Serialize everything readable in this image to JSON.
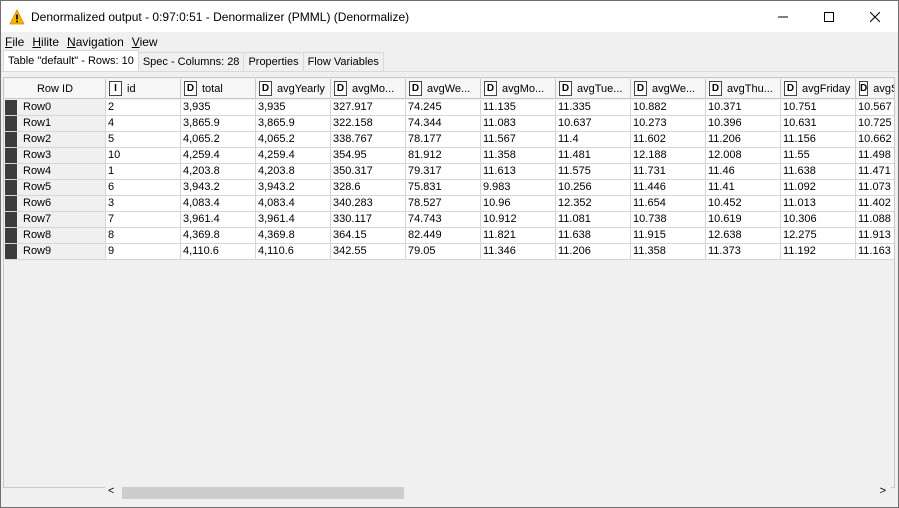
{
  "window": {
    "title": "Denormalized output - 0:97:0:51 - Denormalizer (PMML) (Denormalize)"
  },
  "menu": [
    {
      "label": "File",
      "u": "F",
      "rest": "ile"
    },
    {
      "label": "Hilite",
      "u": "H",
      "rest": "ilite"
    },
    {
      "label": "Navigation",
      "u": "N",
      "rest": "avigation"
    },
    {
      "label": "View",
      "u": "V",
      "rest": "iew"
    }
  ],
  "tabs": [
    "Table \"default\" - Rows: 10",
    "Spec - Columns: 28",
    "Properties",
    "Flow Variables"
  ],
  "table": {
    "columns": [
      {
        "type": "",
        "label": "Row ID"
      },
      {
        "type": "I",
        "label": "id"
      },
      {
        "type": "D",
        "label": "total"
      },
      {
        "type": "D",
        "label": "avgYearly"
      },
      {
        "type": "D",
        "label": "avgMo..."
      },
      {
        "type": "D",
        "label": "avgWe..."
      },
      {
        "type": "D",
        "label": "avgMo..."
      },
      {
        "type": "D",
        "label": "avgTue..."
      },
      {
        "type": "D",
        "label": "avgWe..."
      },
      {
        "type": "D",
        "label": "avgThu..."
      },
      {
        "type": "D",
        "label": "avgFriday"
      },
      {
        "type": "D",
        "label": "avgS..."
      }
    ],
    "rows": [
      [
        "Row0",
        "2",
        "3,935",
        "3,935",
        "327.917",
        "74.245",
        "11.135",
        "11.335",
        "10.882",
        "10.371",
        "10.751",
        "10.567"
      ],
      [
        "Row1",
        "4",
        "3,865.9",
        "3,865.9",
        "322.158",
        "74.344",
        "11.083",
        "10.637",
        "10.273",
        "10.396",
        "10.631",
        "10.725"
      ],
      [
        "Row2",
        "5",
        "4,065.2",
        "4,065.2",
        "338.767",
        "78.177",
        "11.567",
        "11.4",
        "11.602",
        "11.206",
        "11.156",
        "10.662"
      ],
      [
        "Row3",
        "10",
        "4,259.4",
        "4,259.4",
        "354.95",
        "81.912",
        "11.358",
        "11.481",
        "12.188",
        "12.008",
        "11.55",
        "11.498"
      ],
      [
        "Row4",
        "1",
        "4,203.8",
        "4,203.8",
        "350.317",
        "79.317",
        "11.613",
        "11.575",
        "11.731",
        "11.46",
        "11.638",
        "11.471"
      ],
      [
        "Row5",
        "6",
        "3,943.2",
        "3,943.2",
        "328.6",
        "75.831",
        "9.983",
        "10.256",
        "11.446",
        "11.41",
        "11.092",
        "11.073"
      ],
      [
        "Row6",
        "3",
        "4,083.4",
        "4,083.4",
        "340.283",
        "78.527",
        "10.96",
        "12.352",
        "11.654",
        "10.452",
        "11.013",
        "11.402"
      ],
      [
        "Row7",
        "7",
        "3,961.4",
        "3,961.4",
        "330.117",
        "74.743",
        "10.912",
        "11.081",
        "10.738",
        "10.619",
        "10.306",
        "11.088"
      ],
      [
        "Row8",
        "8",
        "4,369.8",
        "4,369.8",
        "364.15",
        "82.449",
        "11.821",
        "11.638",
        "11.915",
        "12.638",
        "12.275",
        "11.913"
      ],
      [
        "Row9",
        "9",
        "4,110.6",
        "4,110.6",
        "342.55",
        "79.05",
        "11.346",
        "11.206",
        "11.358",
        "11.373",
        "11.192",
        "11.163"
      ]
    ]
  },
  "scroll": {
    "left": "<",
    "right": ">"
  }
}
